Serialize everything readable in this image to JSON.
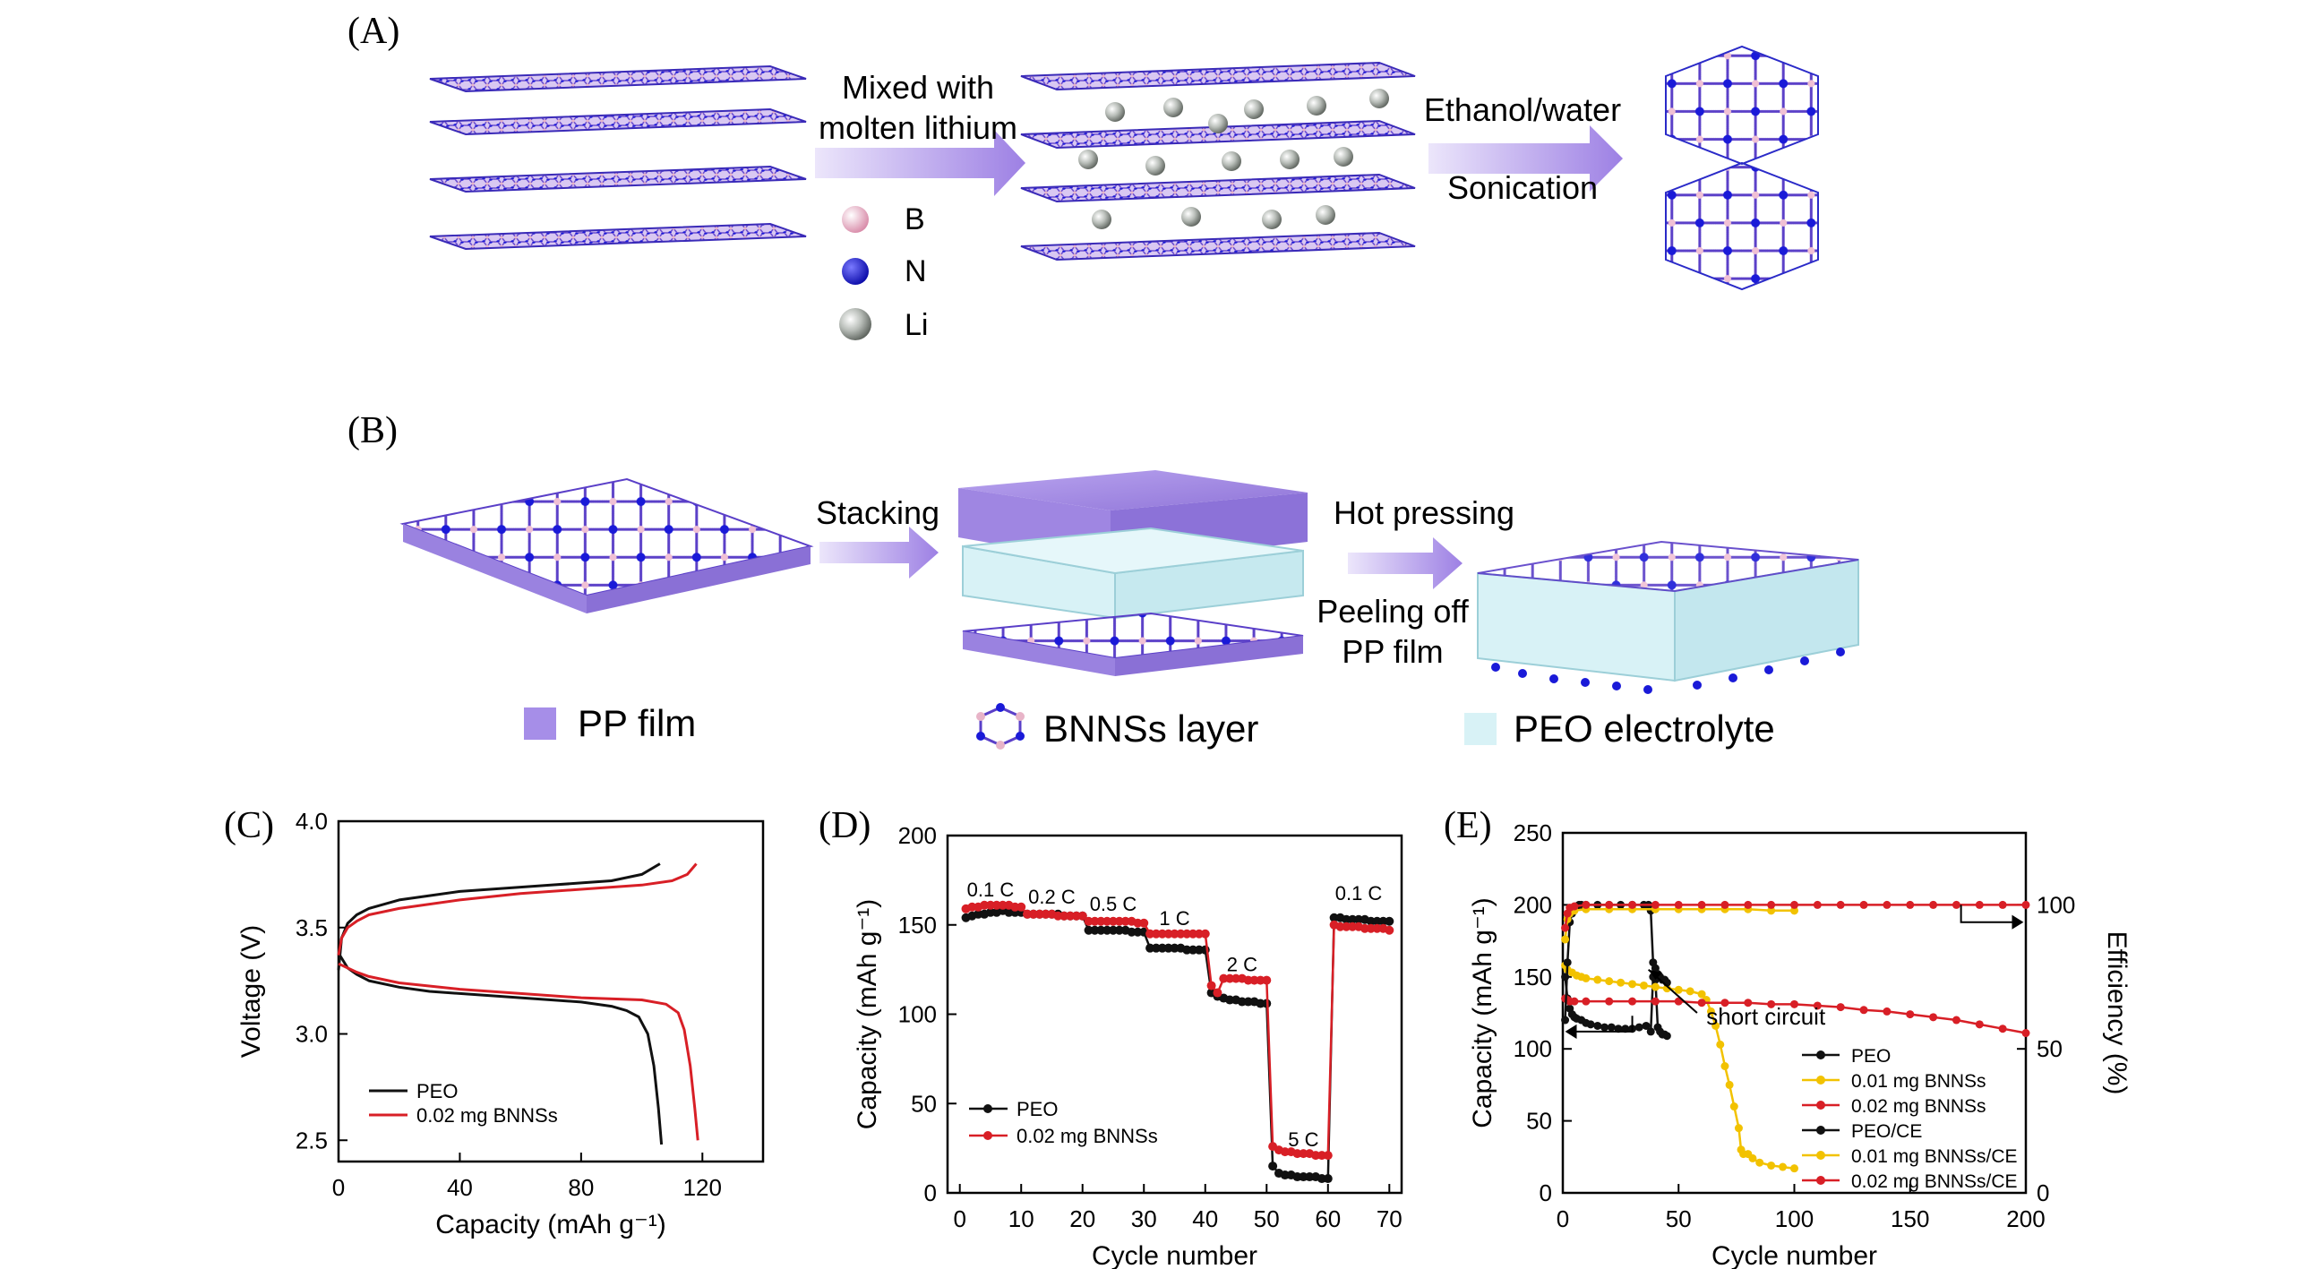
{
  "panels": {
    "A": "(A)",
    "B": "(B)",
    "C": "(C)",
    "D": "(D)",
    "E": "(E)"
  },
  "panel_a": {
    "step1": [
      "Mixed with",
      "molten lithium"
    ],
    "step2": [
      "Ethanol/water",
      "Sonication"
    ],
    "legend": [
      "B",
      "N",
      "Li"
    ]
  },
  "panel_b": {
    "step1": "Stacking",
    "step2": "Hot pressing",
    "step3": [
      "Peeling off",
      "PP film"
    ],
    "legend": [
      "PP film",
      "BNNSs layer",
      "PEO electrolyte"
    ]
  },
  "colors": {
    "boron": "#e8b4c8",
    "nitrogen": "#1a1ad8",
    "lithium": "#9aa09a",
    "pp_film": "#a68ee8",
    "peo": "#d8f2f6",
    "arrow": "#a58be6",
    "peo_series": "#111111",
    "bnns_series": "#d81f26",
    "bnns01_series": "#f2c200"
  },
  "chart_data": [
    {
      "id": "C",
      "type": "line",
      "title": "",
      "xlabel": "Capacity (mAh g⁻¹)",
      "ylabel": "Voltage (V)",
      "xlim": [
        0,
        140
      ],
      "ylim": [
        2.4,
        4.0
      ],
      "xticks": [
        0,
        40,
        80,
        120
      ],
      "yticks": [
        2.5,
        3.0,
        3.5,
        4.0
      ],
      "legend": [
        "PEO",
        "0.02 mg BNNSs"
      ],
      "series": [
        {
          "name": "PEO charge",
          "x": [
            0,
            1,
            3,
            6,
            10,
            20,
            30,
            40,
            50,
            60,
            70,
            80,
            90,
            100,
            106
          ],
          "y": [
            3.3,
            3.45,
            3.52,
            3.56,
            3.59,
            3.63,
            3.65,
            3.67,
            3.68,
            3.69,
            3.7,
            3.71,
            3.72,
            3.75,
            3.8
          ]
        },
        {
          "name": "PEO discharge",
          "x": [
            0,
            3,
            6,
            10,
            20,
            30,
            40,
            50,
            60,
            70,
            80,
            90,
            95,
            99,
            102,
            104,
            105.5,
            106.5
          ],
          "y": [
            3.38,
            3.31,
            3.28,
            3.25,
            3.22,
            3.2,
            3.19,
            3.18,
            3.17,
            3.16,
            3.15,
            3.13,
            3.11,
            3.08,
            3.0,
            2.85,
            2.65,
            2.48
          ]
        },
        {
          "name": "BNNSs charge",
          "x": [
            0,
            1,
            3,
            6,
            10,
            20,
            40,
            60,
            80,
            100,
            110,
            115,
            118
          ],
          "y": [
            3.37,
            3.45,
            3.5,
            3.53,
            3.56,
            3.59,
            3.63,
            3.66,
            3.68,
            3.7,
            3.72,
            3.75,
            3.8
          ]
        },
        {
          "name": "BNNSs discharge",
          "x": [
            0,
            3,
            6,
            10,
            20,
            40,
            60,
            80,
            100,
            108,
            112,
            114,
            116,
            117.5,
            118.5
          ],
          "y": [
            3.33,
            3.31,
            3.29,
            3.27,
            3.24,
            3.21,
            3.19,
            3.17,
            3.16,
            3.14,
            3.1,
            3.02,
            2.85,
            2.65,
            2.5
          ]
        }
      ]
    },
    {
      "id": "D",
      "type": "scatter",
      "title": "",
      "xlabel": "Cycle number",
      "ylabel": "Capacity (mAh g⁻¹)",
      "xlim": [
        -2,
        72
      ],
      "ylim": [
        0,
        200
      ],
      "xticks": [
        0,
        10,
        20,
        30,
        40,
        50,
        60,
        70
      ],
      "yticks": [
        0,
        50,
        100,
        150,
        200
      ],
      "legend": [
        "PEO",
        "0.02 mg BNNSs"
      ],
      "annotations": [
        {
          "text": "0.1 C",
          "x": 5,
          "y": 166
        },
        {
          "text": "0.2 C",
          "x": 15,
          "y": 162
        },
        {
          "text": "0.5 C",
          "x": 25,
          "y": 158
        },
        {
          "text": "1 C",
          "x": 35,
          "y": 150
        },
        {
          "text": "2 C",
          "x": 46,
          "y": 124
        },
        {
          "text": "5 C",
          "x": 56,
          "y": 26
        },
        {
          "text": "0.1 C",
          "x": 65,
          "y": 164
        }
      ],
      "series": [
        {
          "name": "PEO",
          "x": [
            1,
            2,
            3,
            4,
            5,
            6,
            7,
            8,
            9,
            10,
            11,
            12,
            13,
            14,
            15,
            16,
            17,
            18,
            19,
            20,
            21,
            22,
            23,
            24,
            25,
            26,
            27,
            28,
            29,
            30,
            31,
            32,
            33,
            34,
            35,
            36,
            37,
            38,
            39,
            40,
            41,
            42,
            43,
            44,
            45,
            46,
            47,
            48,
            49,
            50,
            51,
            52,
            53,
            54,
            55,
            56,
            57,
            58,
            59,
            60,
            61,
            62,
            63,
            64,
            65,
            66,
            67,
            68,
            69,
            70
          ],
          "y": [
            154,
            155,
            156,
            156,
            157,
            157,
            158,
            157,
            157,
            157,
            156,
            156,
            156,
            156,
            156,
            156,
            155,
            155,
            155,
            155,
            147,
            147,
            147,
            147,
            147,
            147,
            147,
            146,
            146,
            146,
            137,
            137,
            137,
            137,
            137,
            137,
            136,
            136,
            136,
            136,
            112,
            110,
            109,
            108,
            108,
            107,
            107,
            107,
            106,
            106,
            15,
            11,
            10,
            10,
            9,
            9,
            9,
            9,
            8,
            8,
            154,
            154,
            153,
            153,
            153,
            153,
            152,
            152,
            152,
            152
          ]
        },
        {
          "name": "0.02 mg BNNSs",
          "x": [
            1,
            2,
            3,
            4,
            5,
            6,
            7,
            8,
            9,
            10,
            11,
            12,
            13,
            14,
            15,
            16,
            17,
            18,
            19,
            20,
            21,
            22,
            23,
            24,
            25,
            26,
            27,
            28,
            29,
            30,
            31,
            32,
            33,
            34,
            35,
            36,
            37,
            38,
            39,
            40,
            41,
            42,
            43,
            44,
            45,
            46,
            47,
            48,
            49,
            50,
            51,
            52,
            53,
            54,
            55,
            56,
            57,
            58,
            59,
            60,
            61,
            62,
            63,
            64,
            65,
            66,
            67,
            68,
            69,
            70
          ],
          "y": [
            159,
            160,
            160,
            161,
            161,
            161,
            161,
            161,
            160,
            160,
            156,
            156,
            156,
            156,
            156,
            155,
            155,
            155,
            155,
            155,
            152,
            152,
            152,
            152,
            152,
            152,
            152,
            152,
            151,
            151,
            145,
            145,
            145,
            145,
            145,
            145,
            145,
            145,
            145,
            145,
            116,
            112,
            120,
            120,
            120,
            120,
            119,
            119,
            119,
            119,
            26,
            24,
            23,
            23,
            22,
            22,
            22,
            21,
            21,
            21,
            150,
            149,
            149,
            149,
            149,
            148,
            148,
            148,
            148,
            147
          ]
        }
      ]
    },
    {
      "id": "E",
      "type": "scatter",
      "title": "",
      "xlabel": "Cycle number",
      "ylabel": "Capacity (mAh g⁻¹)",
      "y2label": "Efficiency (%)",
      "xlim": [
        0,
        200
      ],
      "ylim": [
        0,
        250
      ],
      "y2lim": [
        0,
        125
      ],
      "xticks": [
        0,
        50,
        100,
        150,
        200
      ],
      "yticks": [
        0,
        50,
        100,
        150,
        200,
        250
      ],
      "y2ticks": [
        0,
        50,
        100
      ],
      "legend": [
        "PEO",
        "0.01 mg BNNSs",
        "0.02 mg BNNSs",
        "PEO/CE",
        "0.01 mg BNNSs/CE",
        "0.02 mg BNNSs/CE"
      ],
      "annotations": [
        {
          "text": "short circuit",
          "x": 62,
          "y": 122
        }
      ],
      "series": [
        {
          "name": "PEO",
          "x": [
            1,
            2,
            3,
            4,
            5,
            6,
            8,
            10,
            12,
            15,
            18,
            21,
            24,
            27,
            30,
            33,
            36,
            38,
            39,
            40,
            41,
            42,
            43,
            44,
            45
          ],
          "y": [
            150,
            135,
            128,
            124,
            122,
            121,
            120,
            118,
            117,
            116,
            115,
            115,
            114,
            114,
            114,
            115,
            116,
            112,
            150,
            148,
            115,
            112,
            110,
            110,
            109
          ]
        },
        {
          "name": "0.01 mg BNNSs",
          "x": [
            1,
            2,
            4,
            6,
            8,
            10,
            15,
            20,
            25,
            30,
            35,
            40,
            45,
            50,
            55,
            60,
            62,
            64,
            66,
            68,
            70,
            72,
            74,
            76,
            77,
            78,
            80,
            82,
            85,
            90,
            95,
            100
          ],
          "y": [
            158,
            155,
            153,
            151,
            150,
            149,
            148,
            147,
            146,
            145,
            144,
            143,
            142,
            141,
            140,
            138,
            134,
            126,
            116,
            103,
            88,
            75,
            60,
            45,
            30,
            27,
            27,
            24,
            21,
            19,
            18,
            17
          ]
        },
        {
          "name": "0.02 mg BNNSs",
          "x": [
            1,
            2,
            3,
            5,
            10,
            20,
            30,
            40,
            50,
            60,
            70,
            80,
            90,
            100,
            110,
            120,
            130,
            140,
            150,
            160,
            170,
            180,
            190,
            200
          ],
          "y": [
            135,
            134,
            133,
            133,
            133,
            133,
            133,
            133,
            133,
            132,
            132,
            132,
            131,
            131,
            130,
            129,
            127,
            126,
            124,
            122,
            120,
            117,
            114,
            111
          ]
        },
        {
          "name": "PEO/CE",
          "x": [
            1,
            2,
            3,
            4,
            5,
            6,
            7,
            8,
            10,
            15,
            20,
            25,
            30,
            35,
            37,
            38,
            39,
            40,
            41,
            42,
            43,
            44,
            45
          ],
          "y": [
            60,
            80,
            94,
            97,
            99,
            99.5,
            100,
            100,
            100,
            100,
            100,
            100,
            100,
            100,
            100,
            98,
            80,
            78,
            76,
            75,
            74,
            74,
            73
          ]
        },
        {
          "name": "0.01 mg BNNSs/CE",
          "x": [
            1,
            2,
            3,
            5,
            10,
            20,
            30,
            40,
            50,
            60,
            70,
            80,
            90,
            100
          ],
          "y": [
            88,
            95,
            97,
            98,
            98.5,
            98.5,
            98.5,
            98.5,
            98.5,
            98.5,
            98.5,
            98.5,
            98,
            98
          ]
        },
        {
          "name": "0.02 mg BNNSs/CE",
          "x": [
            1,
            2,
            3,
            5,
            10,
            20,
            30,
            40,
            50,
            60,
            70,
            80,
            90,
            100,
            110,
            120,
            130,
            140,
            150,
            160,
            170,
            180,
            190,
            200
          ],
          "y": [
            92,
            97,
            99,
            99.5,
            100,
            100,
            100,
            100,
            100,
            100,
            100,
            100,
            100,
            100,
            100,
            100,
            100,
            100,
            100,
            100,
            100,
            100,
            100,
            100
          ]
        }
      ]
    }
  ]
}
